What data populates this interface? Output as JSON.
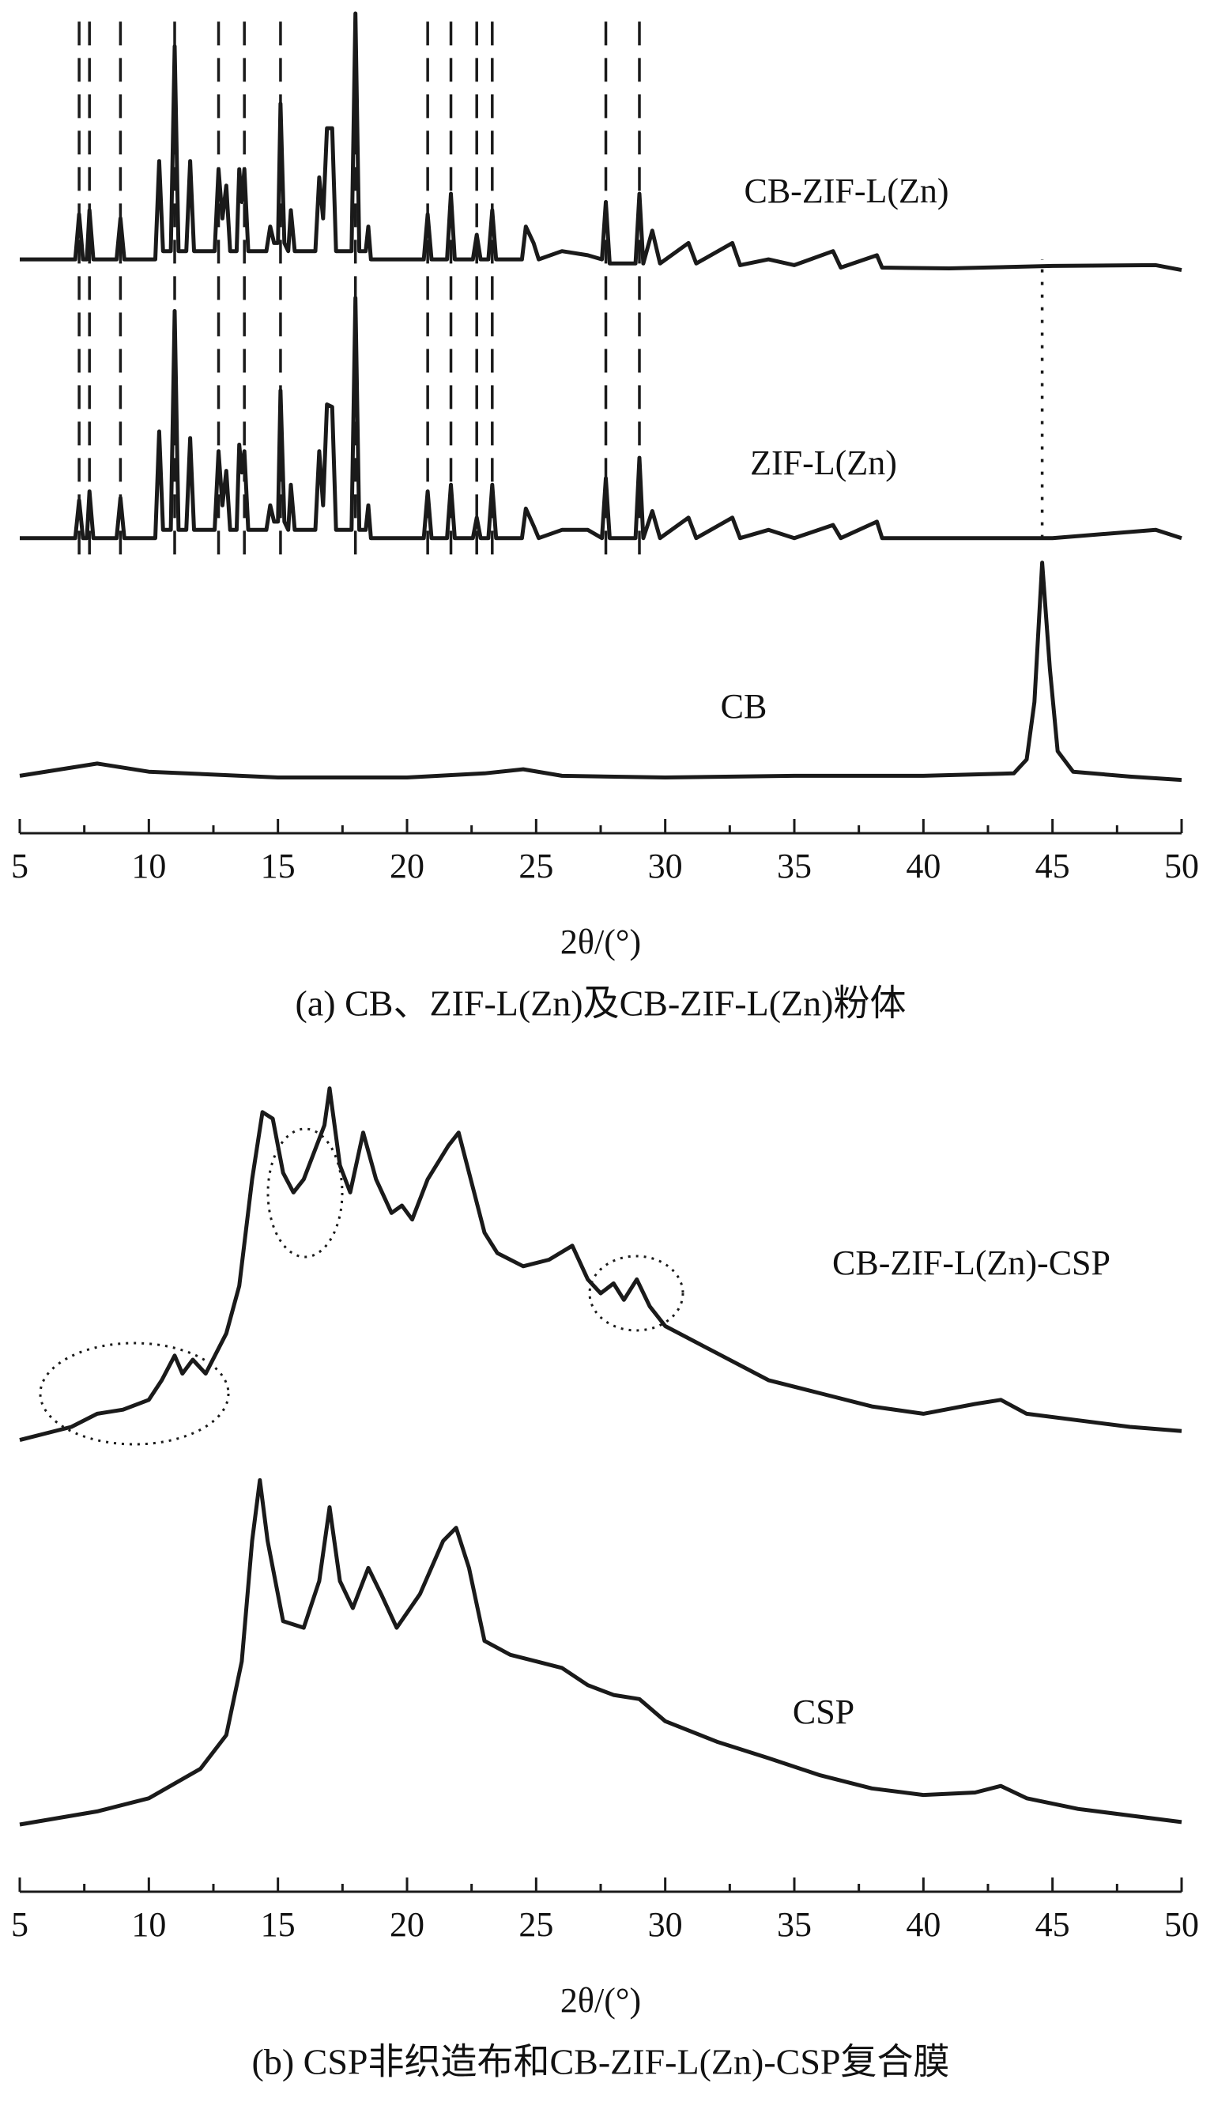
{
  "chart_data": [
    {
      "type": "line",
      "x_label": "2θ/(°)",
      "caption": "(a) CB、ZIF-L(Zn)及CB-ZIF-L(Zn)粉体",
      "xlim": [
        5,
        50
      ],
      "xticks": [
        5,
        10,
        15,
        20,
        25,
        30,
        35,
        40,
        45,
        50
      ],
      "xticks_minor": [
        7.5,
        12.5,
        17.5,
        22.5,
        27.5,
        32.5,
        37.5,
        42.5,
        47.5
      ],
      "ylim": [
        0,
        100
      ],
      "reference_x_dashed": [
        7.3,
        7.7,
        8.9,
        11,
        12.7,
        13.7,
        15.1,
        18,
        20.8,
        21.7,
        22.7,
        23.3,
        27.7,
        29
      ],
      "reference_x_dotted": [
        44.6
      ],
      "series": [
        {
          "name": "CB-ZIF-L(Zn)",
          "color": "#1a1a1a",
          "x": [
            5,
            7.15,
            7.3,
            7.45,
            7.6,
            7.7,
            7.85,
            8.75,
            8.9,
            9.05,
            10.25,
            10.4,
            10.55,
            10.85,
            11,
            11.15,
            11.45,
            11.6,
            11.75,
            12.55,
            12.7,
            12.85,
            13,
            13.15,
            13.4,
            13.5,
            13.6,
            13.7,
            13.85,
            14.55,
            14.7,
            14.85,
            15,
            15.1,
            15.25,
            15.4,
            15.5,
            15.65,
            16.45,
            16.6,
            16.75,
            16.9,
            17.1,
            17.25,
            17.85,
            18,
            18.15,
            18.4,
            18.5,
            18.6,
            20.65,
            20.8,
            20.95,
            21.55,
            21.7,
            21.85,
            22.55,
            22.7,
            22.85,
            23.15,
            23.3,
            23.45,
            24.45,
            24.6,
            24.9,
            25.1,
            26,
            27,
            27.55,
            27.7,
            27.85,
            28.85,
            29,
            29.15,
            29.5,
            29.8,
            30.9,
            31.2,
            32.6,
            32.9,
            34,
            35,
            36.5,
            36.8,
            38.2,
            38.4,
            41,
            45,
            49,
            50
          ],
          "values": [
            70,
            70,
            75.5,
            70,
            70,
            76,
            70,
            70,
            75,
            70,
            70,
            82,
            71,
            71,
            96,
            71,
            71,
            82,
            71,
            71,
            81,
            75,
            79,
            71,
            71,
            81,
            77,
            81,
            71,
            71,
            74,
            72,
            72,
            89,
            72,
            71,
            76,
            71,
            71,
            80,
            75,
            86,
            86,
            71,
            71,
            100,
            71,
            71,
            74,
            70,
            70,
            75.5,
            70,
            70,
            78,
            70,
            70,
            73,
            70,
            70,
            76,
            70,
            70,
            74,
            72,
            70,
            71,
            70.5,
            70,
            77,
            69.5,
            69.5,
            78,
            69.5,
            73.5,
            69.5,
            72,
            69.5,
            72,
            69.3,
            70,
            69.3,
            71,
            69,
            70.5,
            69,
            68.9,
            69.2,
            69.3,
            68.7
          ]
        },
        {
          "name": "ZIF-L(Zn)",
          "color": "#1a1a1a",
          "x": [
            5,
            7.15,
            7.3,
            7.45,
            7.6,
            7.7,
            7.85,
            8.75,
            8.9,
            9.05,
            10.25,
            10.4,
            10.55,
            10.85,
            11,
            11.15,
            11.45,
            11.6,
            11.75,
            12.55,
            12.7,
            12.85,
            13,
            13.15,
            13.4,
            13.5,
            13.6,
            13.7,
            13.85,
            14.55,
            14.7,
            14.85,
            15,
            15.1,
            15.25,
            15.4,
            15.5,
            15.65,
            16.45,
            16.6,
            16.75,
            16.9,
            17.1,
            17.25,
            17.85,
            18,
            18.15,
            18.4,
            18.5,
            18.6,
            20.65,
            20.8,
            20.95,
            21.55,
            21.7,
            21.85,
            22.55,
            22.7,
            22.85,
            23.15,
            23.3,
            23.45,
            24.45,
            24.6,
            24.9,
            25.1,
            26,
            27,
            27.55,
            27.7,
            27.85,
            28.85,
            29,
            29.15,
            29.5,
            29.8,
            30.9,
            31.2,
            32.6,
            32.9,
            34,
            35,
            36.5,
            36.8,
            38.2,
            38.4,
            41,
            45,
            49,
            50
          ],
          "values": [
            36,
            36,
            40.6,
            36,
            36,
            41.7,
            36,
            36,
            40.9,
            36,
            36,
            49,
            37,
            37,
            63.7,
            37,
            37,
            48.2,
            37,
            37,
            46.6,
            40,
            44.2,
            37,
            37,
            47.4,
            44,
            46.6,
            37,
            37,
            40,
            38,
            38,
            54,
            38,
            37,
            42.5,
            37,
            37,
            46.6,
            40,
            52.3,
            52,
            37,
            37,
            65.3,
            37,
            37,
            40,
            36,
            36,
            41.7,
            36,
            36,
            42.5,
            36,
            36,
            38.5,
            36,
            36,
            42.5,
            36,
            36,
            39.6,
            37.5,
            36,
            37,
            37,
            36,
            43.3,
            36,
            36,
            45.8,
            36,
            39.3,
            36,
            38.5,
            36,
            38.5,
            36,
            37,
            36,
            37.6,
            36,
            38,
            36,
            36,
            36,
            37,
            36
          ]
        },
        {
          "name": "CB",
          "color": "#1a1a1a",
          "x": [
            5,
            8,
            10,
            15,
            20,
            23,
            24.5,
            26,
            30,
            35,
            40,
            43.5,
            44,
            44.3,
            44.6,
            44.9,
            45.2,
            45.8,
            48,
            50
          ],
          "values": [
            7,
            8.5,
            7.5,
            6.8,
            6.8,
            7.3,
            7.8,
            7,
            6.8,
            7,
            7,
            7.3,
            9,
            16,
            33,
            20,
            10,
            7.5,
            6.9,
            6.5
          ]
        }
      ]
    },
    {
      "type": "line",
      "x_label": "2θ/(°)",
      "caption": "(b) CSP非织造布和CB-ZIF-L(Zn)-CSP复合膜",
      "xlim": [
        5,
        50
      ],
      "xticks": [
        5,
        10,
        15,
        20,
        25,
        30,
        35,
        40,
        45,
        50
      ],
      "xticks_minor": [
        7.5,
        12.5,
        17.5,
        22.5,
        27.5,
        32.5,
        37.5,
        42.5,
        47.5
      ],
      "ylim": [
        0,
        100
      ],
      "series": [
        {
          "name": "CB-ZIF-L(Zn)-CSP",
          "color": "#1a1a1a",
          "x": [
            5,
            7,
            8,
            9,
            10,
            10.5,
            11,
            11.3,
            11.7,
            12.2,
            13,
            13.5,
            14,
            14.4,
            14.8,
            15.2,
            15.6,
            16,
            16.4,
            16.8,
            17,
            17.4,
            17.8,
            18.3,
            18.8,
            19.4,
            19.8,
            20.2,
            20.8,
            21.6,
            22,
            22.6,
            23,
            23.5,
            24.5,
            25.5,
            26.4,
            27,
            27.5,
            28,
            28.4,
            28.9,
            29.4,
            30,
            32,
            34,
            36,
            38,
            40,
            42,
            43,
            44,
            46,
            48,
            50
          ],
          "values": [
            55.1,
            56.7,
            58.3,
            58.8,
            60,
            62.4,
            65.4,
            63.2,
            64.9,
            63.2,
            68.1,
            73.9,
            86.9,
            95.1,
            94.3,
            87.7,
            85.3,
            86.9,
            90.2,
            93.5,
            98,
            88.6,
            85.3,
            92.6,
            86.9,
            82.8,
            83.7,
            82,
            86.9,
            91,
            92.6,
            85.3,
            80.4,
            77.9,
            76.3,
            77.1,
            78.8,
            74.7,
            73,
            74.2,
            72.2,
            74.7,
            71.4,
            69,
            65.7,
            62.4,
            60.8,
            59.2,
            58.3,
            59.5,
            60,
            58.3,
            57.5,
            56.7,
            56.2
          ]
        },
        {
          "name": "CSP",
          "color": "#1a1a1a",
          "x": [
            5,
            8,
            10,
            12,
            13,
            13.6,
            14,
            14.3,
            14.6,
            15.2,
            16,
            16.6,
            17,
            17.4,
            17.9,
            18.5,
            19,
            19.6,
            20.5,
            21.4,
            21.9,
            22.4,
            23,
            24,
            25,
            26,
            27,
            28,
            29,
            30,
            32,
            34,
            36,
            38,
            40,
            42,
            43,
            44,
            46,
            48,
            50
          ],
          "values": [
            8.2,
            9.8,
            11.4,
            15,
            19.1,
            28.1,
            42.8,
            50.2,
            42.8,
            33,
            32.2,
            37.9,
            46.9,
            37.9,
            34.6,
            39.5,
            36.3,
            32.2,
            36.3,
            42.8,
            44.4,
            39.5,
            30.6,
            28.9,
            28.1,
            27.3,
            25.2,
            24,
            23.5,
            20.8,
            18.3,
            16.3,
            14.2,
            12.6,
            11.8,
            12.1,
            12.9,
            11.4,
            10.1,
            9.3,
            8.5
          ]
        }
      ]
    }
  ]
}
